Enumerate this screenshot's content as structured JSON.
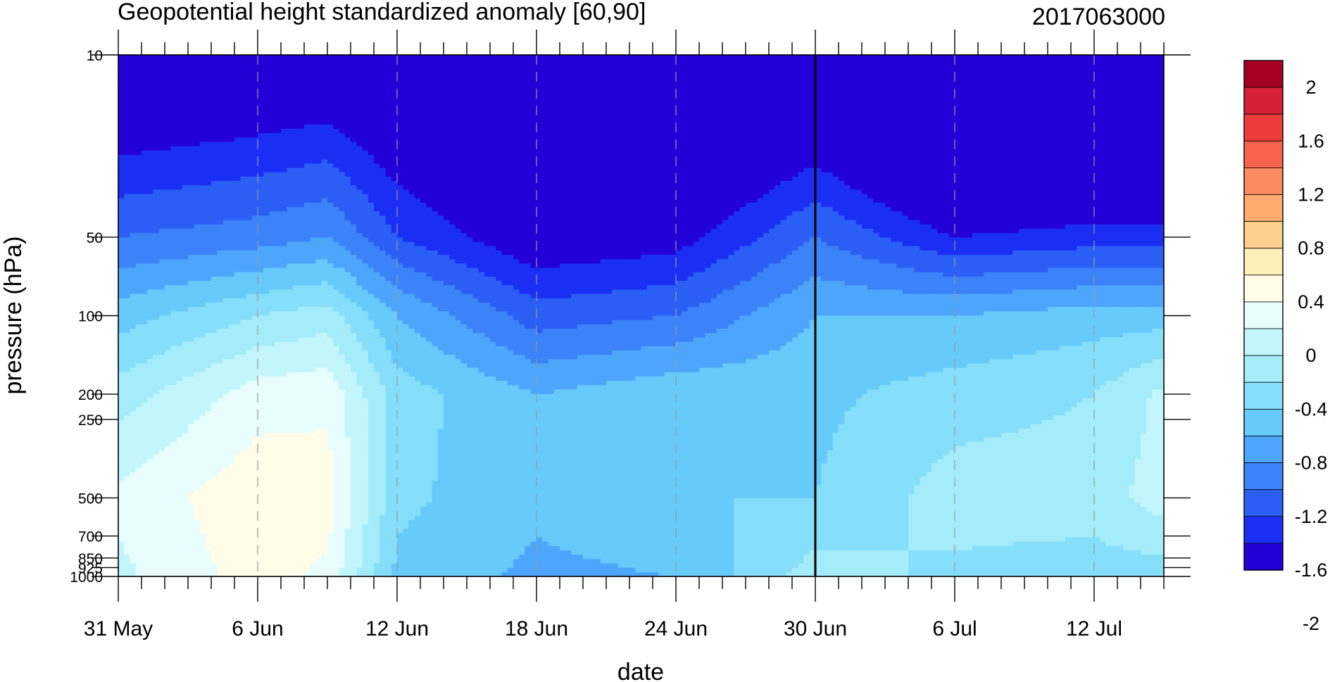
{
  "chart_data": {
    "type": "heatmap",
    "title": "Geopotential height standardized anomaly [60,90]",
    "subtitle": "2017063000",
    "xlabel": "date",
    "ylabel": "pressure (hPa)",
    "x_range_days": [
      0,
      45
    ],
    "x_ticks": [
      {
        "day": 0,
        "label": "31 May"
      },
      {
        "day": 6,
        "label": "6 Jun"
      },
      {
        "day": 12,
        "label": "12 Jun"
      },
      {
        "day": 18,
        "label": "18 Jun"
      },
      {
        "day": 24,
        "label": "24 Jun"
      },
      {
        "day": 30,
        "label": "30 Jun"
      },
      {
        "day": 36,
        "label": "6 Jul"
      },
      {
        "day": 42,
        "label": "12 Jul"
      }
    ],
    "y_scale": "log",
    "y_range": [
      10,
      1000
    ],
    "y_ticks": [
      10,
      50,
      100,
      200,
      250,
      500,
      700,
      850,
      925,
      1000
    ],
    "y_tick_labels": [
      "10",
      "50",
      "100",
      "200",
      "250",
      "500",
      "700",
      "850",
      "925",
      "1000"
    ],
    "vertical_marker_day": 30,
    "colorbar": {
      "labels": [
        "2",
        "1.6",
        "1.2",
        "0.8",
        "0.4",
        "0",
        "-0.4",
        "-0.8",
        "-1.2",
        "-1.6",
        "-2"
      ],
      "colors": [
        "#a50026",
        "#d62035",
        "#ee3b3b",
        "#f9624f",
        "#fb8b5f",
        "#fdab6e",
        "#fed08d",
        "#feeeb8",
        "#fffce8",
        "#e8fdfd",
        "#c2f6fc",
        "#a5ecfb",
        "#86dffa",
        "#66cbfb",
        "#4da6fb",
        "#3c82f8",
        "#2b5ef5",
        "#1b2ff4",
        "#2400d8"
      ]
    },
    "profiles": [
      {
        "day": 0,
        "anomaly": {
          "10": -1.9,
          "50": -1.0,
          "100": -0.5,
          "200": -0.1,
          "500": 0.25,
          "1000": 0.15
        }
      },
      {
        "day": 6,
        "anomaly": {
          "10": -1.8,
          "50": -0.9,
          "100": -0.2,
          "200": 0.3,
          "500": 0.55,
          "1000": 0.5
        }
      },
      {
        "day": 9,
        "anomaly": {
          "10": -1.75,
          "50": -0.8,
          "100": -0.1,
          "200": 0.35,
          "500": 0.5,
          "1000": 0.35
        }
      },
      {
        "day": 12,
        "anomaly": {
          "10": -1.9,
          "50": -1.2,
          "100": -0.6,
          "200": -0.3,
          "500": -0.35,
          "1000": -0.45
        }
      },
      {
        "day": 18,
        "anomaly": {
          "10": -2.3,
          "50": -1.6,
          "100": -1.1,
          "200": -0.6,
          "500": -0.55,
          "1000": -0.65
        }
      },
      {
        "day": 24,
        "anomaly": {
          "10": -2.3,
          "50": -1.5,
          "100": -1.0,
          "200": -0.45,
          "500": -0.4,
          "1000": -0.6
        }
      },
      {
        "day": 30,
        "anomaly": {
          "10": -2.0,
          "50": -1.0,
          "100": -0.6,
          "200": -0.45,
          "500": -0.4,
          "1000": -0.1
        }
      },
      {
        "day": 36,
        "anomaly": {
          "10": -2.7,
          "50": -1.4,
          "100": -0.6,
          "200": -0.3,
          "500": -0.1,
          "1000": -0.25
        }
      },
      {
        "day": 42,
        "anomaly": {
          "10": -2.7,
          "50": -1.3,
          "100": -0.5,
          "200": -0.2,
          "500": -0.1,
          "1000": -0.3
        }
      },
      {
        "day": 45,
        "anomaly": {
          "10": -2.7,
          "50": -1.3,
          "100": -0.5,
          "200": 0.05,
          "500": 0.1,
          "1000": -0.3
        }
      }
    ]
  }
}
